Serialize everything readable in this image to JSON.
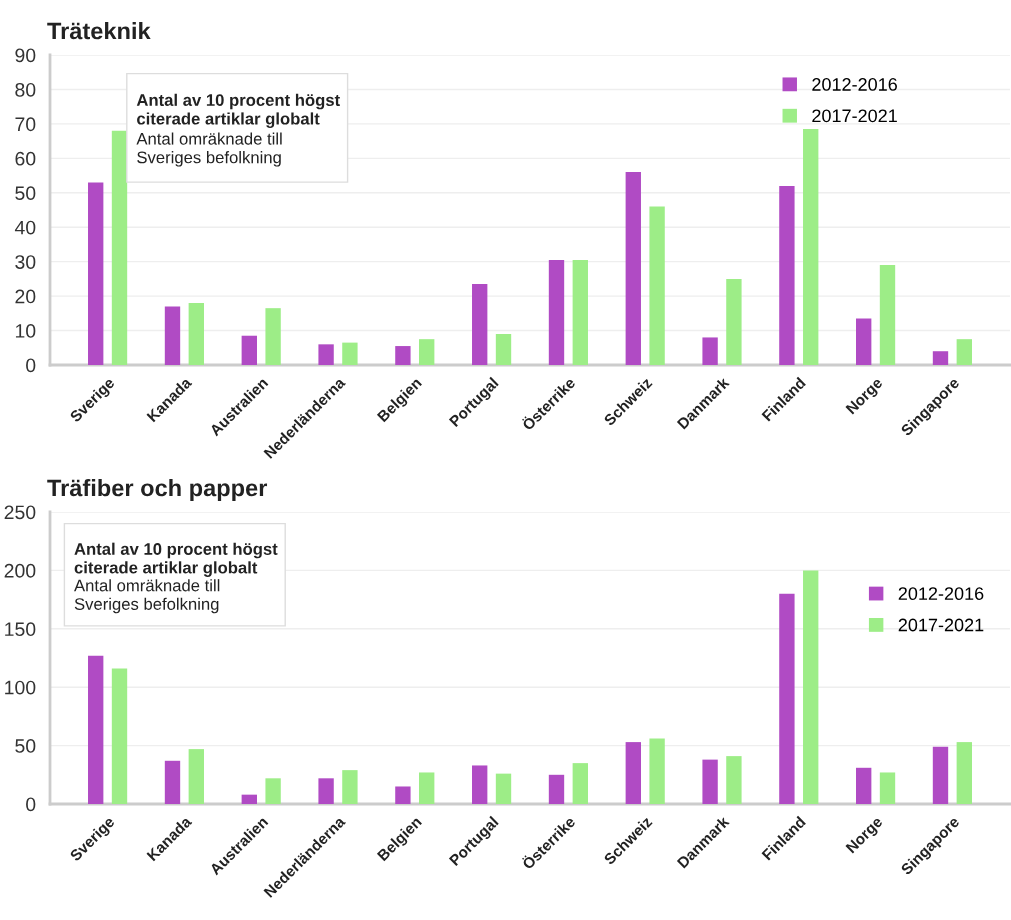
{
  "chart_data": [
    {
      "type": "bar",
      "title": "Träteknik",
      "categories": [
        "Sverige",
        "Kanada",
        "Australien",
        "Nederländerna",
        "Belgien",
        "Portugal",
        "Österrike",
        "Schweiz",
        "Danmark",
        "Finland",
        "Norge",
        "Singapore"
      ],
      "series": [
        {
          "name": "2012-2016",
          "color": "#b04bc4",
          "values": [
            53,
            17,
            8.5,
            6,
            5.5,
            23.5,
            30.5,
            56,
            8,
            52,
            13.5,
            4
          ]
        },
        {
          "name": "2017-2021",
          "color": "#9ded87",
          "values": [
            68,
            18,
            16.5,
            6.5,
            7.5,
            9,
            30.5,
            46,
            25,
            68.5,
            29,
            7.5
          ]
        }
      ],
      "ylim": [
        0,
        90
      ],
      "yticks": [
        0,
        10,
        20,
        30,
        40,
        50,
        60,
        70,
        80,
        90
      ],
      "grid": "y",
      "legend": "top right",
      "annotations": [
        "Antal av 10 procent högst\nciterade artiklar globalt",
        "Antal omräknade till\nSveriges befolkning"
      ]
    },
    {
      "type": "bar",
      "title": "Träfiber och papper",
      "categories": [
        "Sverige",
        "Kanada",
        "Australien",
        "Nederländerna",
        "Belgien",
        "Portugal",
        "Österrike",
        "Schweiz",
        "Danmark",
        "Finland",
        "Norge",
        "Singapore"
      ],
      "series": [
        {
          "name": "2012-2016",
          "color": "#b04bc4",
          "values": [
            127,
            37,
            8,
            22,
            15,
            33,
            25,
            53,
            38,
            180,
            31,
            49
          ]
        },
        {
          "name": "2017-2021",
          "color": "#9ded87",
          "values": [
            116,
            47,
            22,
            29,
            27,
            26,
            35,
            56,
            41,
            200,
            27,
            53
          ]
        }
      ],
      "ylim": [
        0,
        250
      ],
      "yticks": [
        0,
        50,
        100,
        150,
        200,
        250
      ],
      "grid": "y",
      "legend": "top right",
      "annotations": [
        "Antal av 10 procent högst\nciterade artiklar globalt",
        "Antal omräknade till\nSveriges befolkning"
      ]
    }
  ]
}
